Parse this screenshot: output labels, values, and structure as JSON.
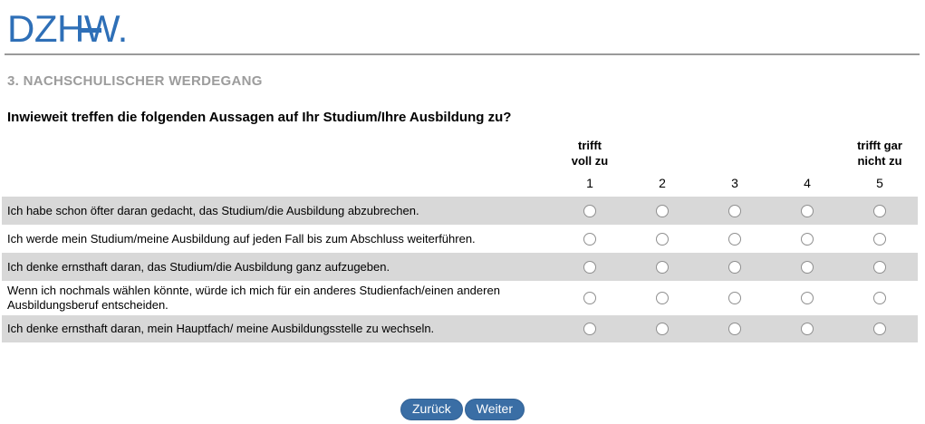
{
  "logo": {
    "text": "DZHW."
  },
  "section_title": "3. NACHSCHULISCHER WERDEGANG",
  "question": "Inwieweit treffen die folgenden Aussagen auf Ihr Studium/Ihre Ausbildung zu?",
  "scale": {
    "left_label_line1": "trifft",
    "left_label_line2": "voll zu",
    "right_label_line1": "trifft gar",
    "right_label_line2": "nicht zu",
    "points": [
      "1",
      "2",
      "3",
      "4",
      "5"
    ]
  },
  "items": [
    "Ich habe schon öfter daran gedacht, das Studium/die Ausbildung abzubrechen.",
    "Ich werde mein Studium/meine Ausbildung auf jeden Fall bis zum Abschluss weiterführen.",
    "Ich denke ernsthaft daran, das Studium/die Ausbildung ganz aufzugeben.",
    "Wenn ich nochmals wählen könnte, würde ich mich für ein anderes Studienfach/einen anderen Ausbildungsberuf entscheiden.",
    "Ich denke ernsthaft daran, mein Hauptfach/ meine Ausbildungsstelle zu wechseln."
  ],
  "buttons": {
    "back": "Zurück",
    "next": "Weiter"
  },
  "colors": {
    "logo_blue": "#2E6FB7",
    "button_blue": "#3A6EA5",
    "row_gray": "#D8D8D8",
    "heading_gray": "#9C9C9C",
    "rule_gray": "#9A9A9A"
  }
}
